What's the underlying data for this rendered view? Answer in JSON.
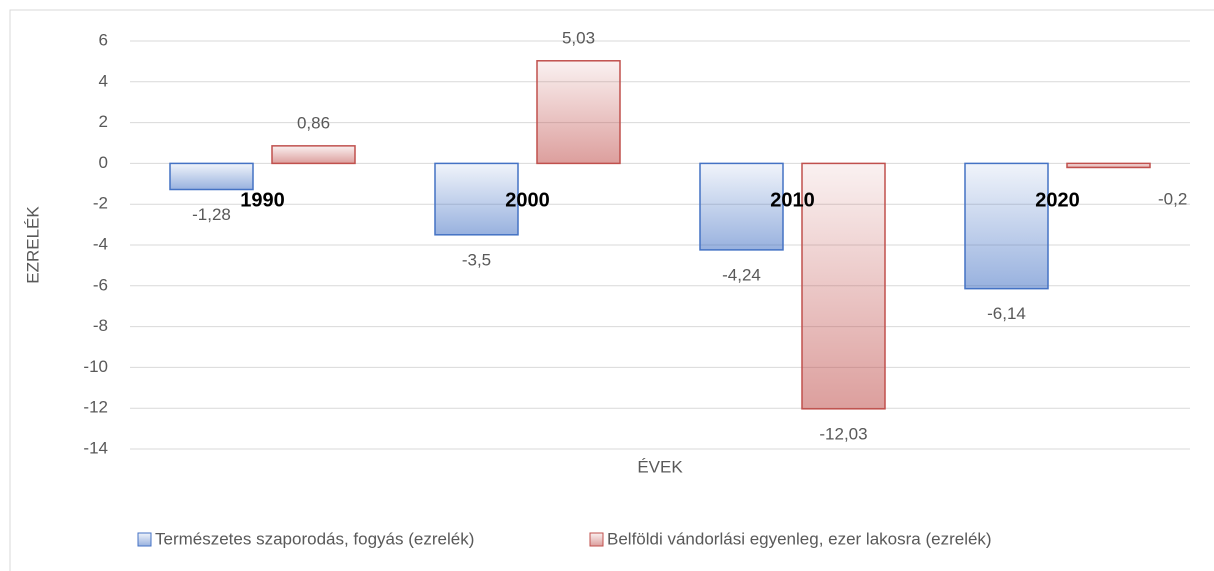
{
  "chart_data": {
    "type": "bar",
    "y_axis_label": "EZRELÉK",
    "x_axis_label": "ÉVEK",
    "categories": [
      "1990",
      "2000",
      "2010",
      "2020"
    ],
    "series": [
      {
        "name": "Természetes szaporodás, fogyás (ezrelék)",
        "color": "#4472c4",
        "values": [
          -1.28,
          -3.5,
          -4.24,
          -6.14
        ],
        "value_labels": [
          "-1,28",
          "-3,5",
          "-4,24",
          "-6,14"
        ]
      },
      {
        "name": "Belföldi vándorlási egyenleg, ezer lakosra (ezrelék)",
        "color": "#c0504d",
        "values": [
          0.86,
          5.03,
          -12.03,
          -0.2
        ],
        "value_labels": [
          "0,86",
          "5,03",
          "-12,03",
          "-0,2"
        ]
      }
    ],
    "ylim": [
      -14,
      6
    ],
    "yticks": [
      -14,
      -12,
      -10,
      -8,
      -6,
      -4,
      -2,
      0,
      2,
      4,
      6
    ],
    "grid": true,
    "legend": "bottom"
  }
}
